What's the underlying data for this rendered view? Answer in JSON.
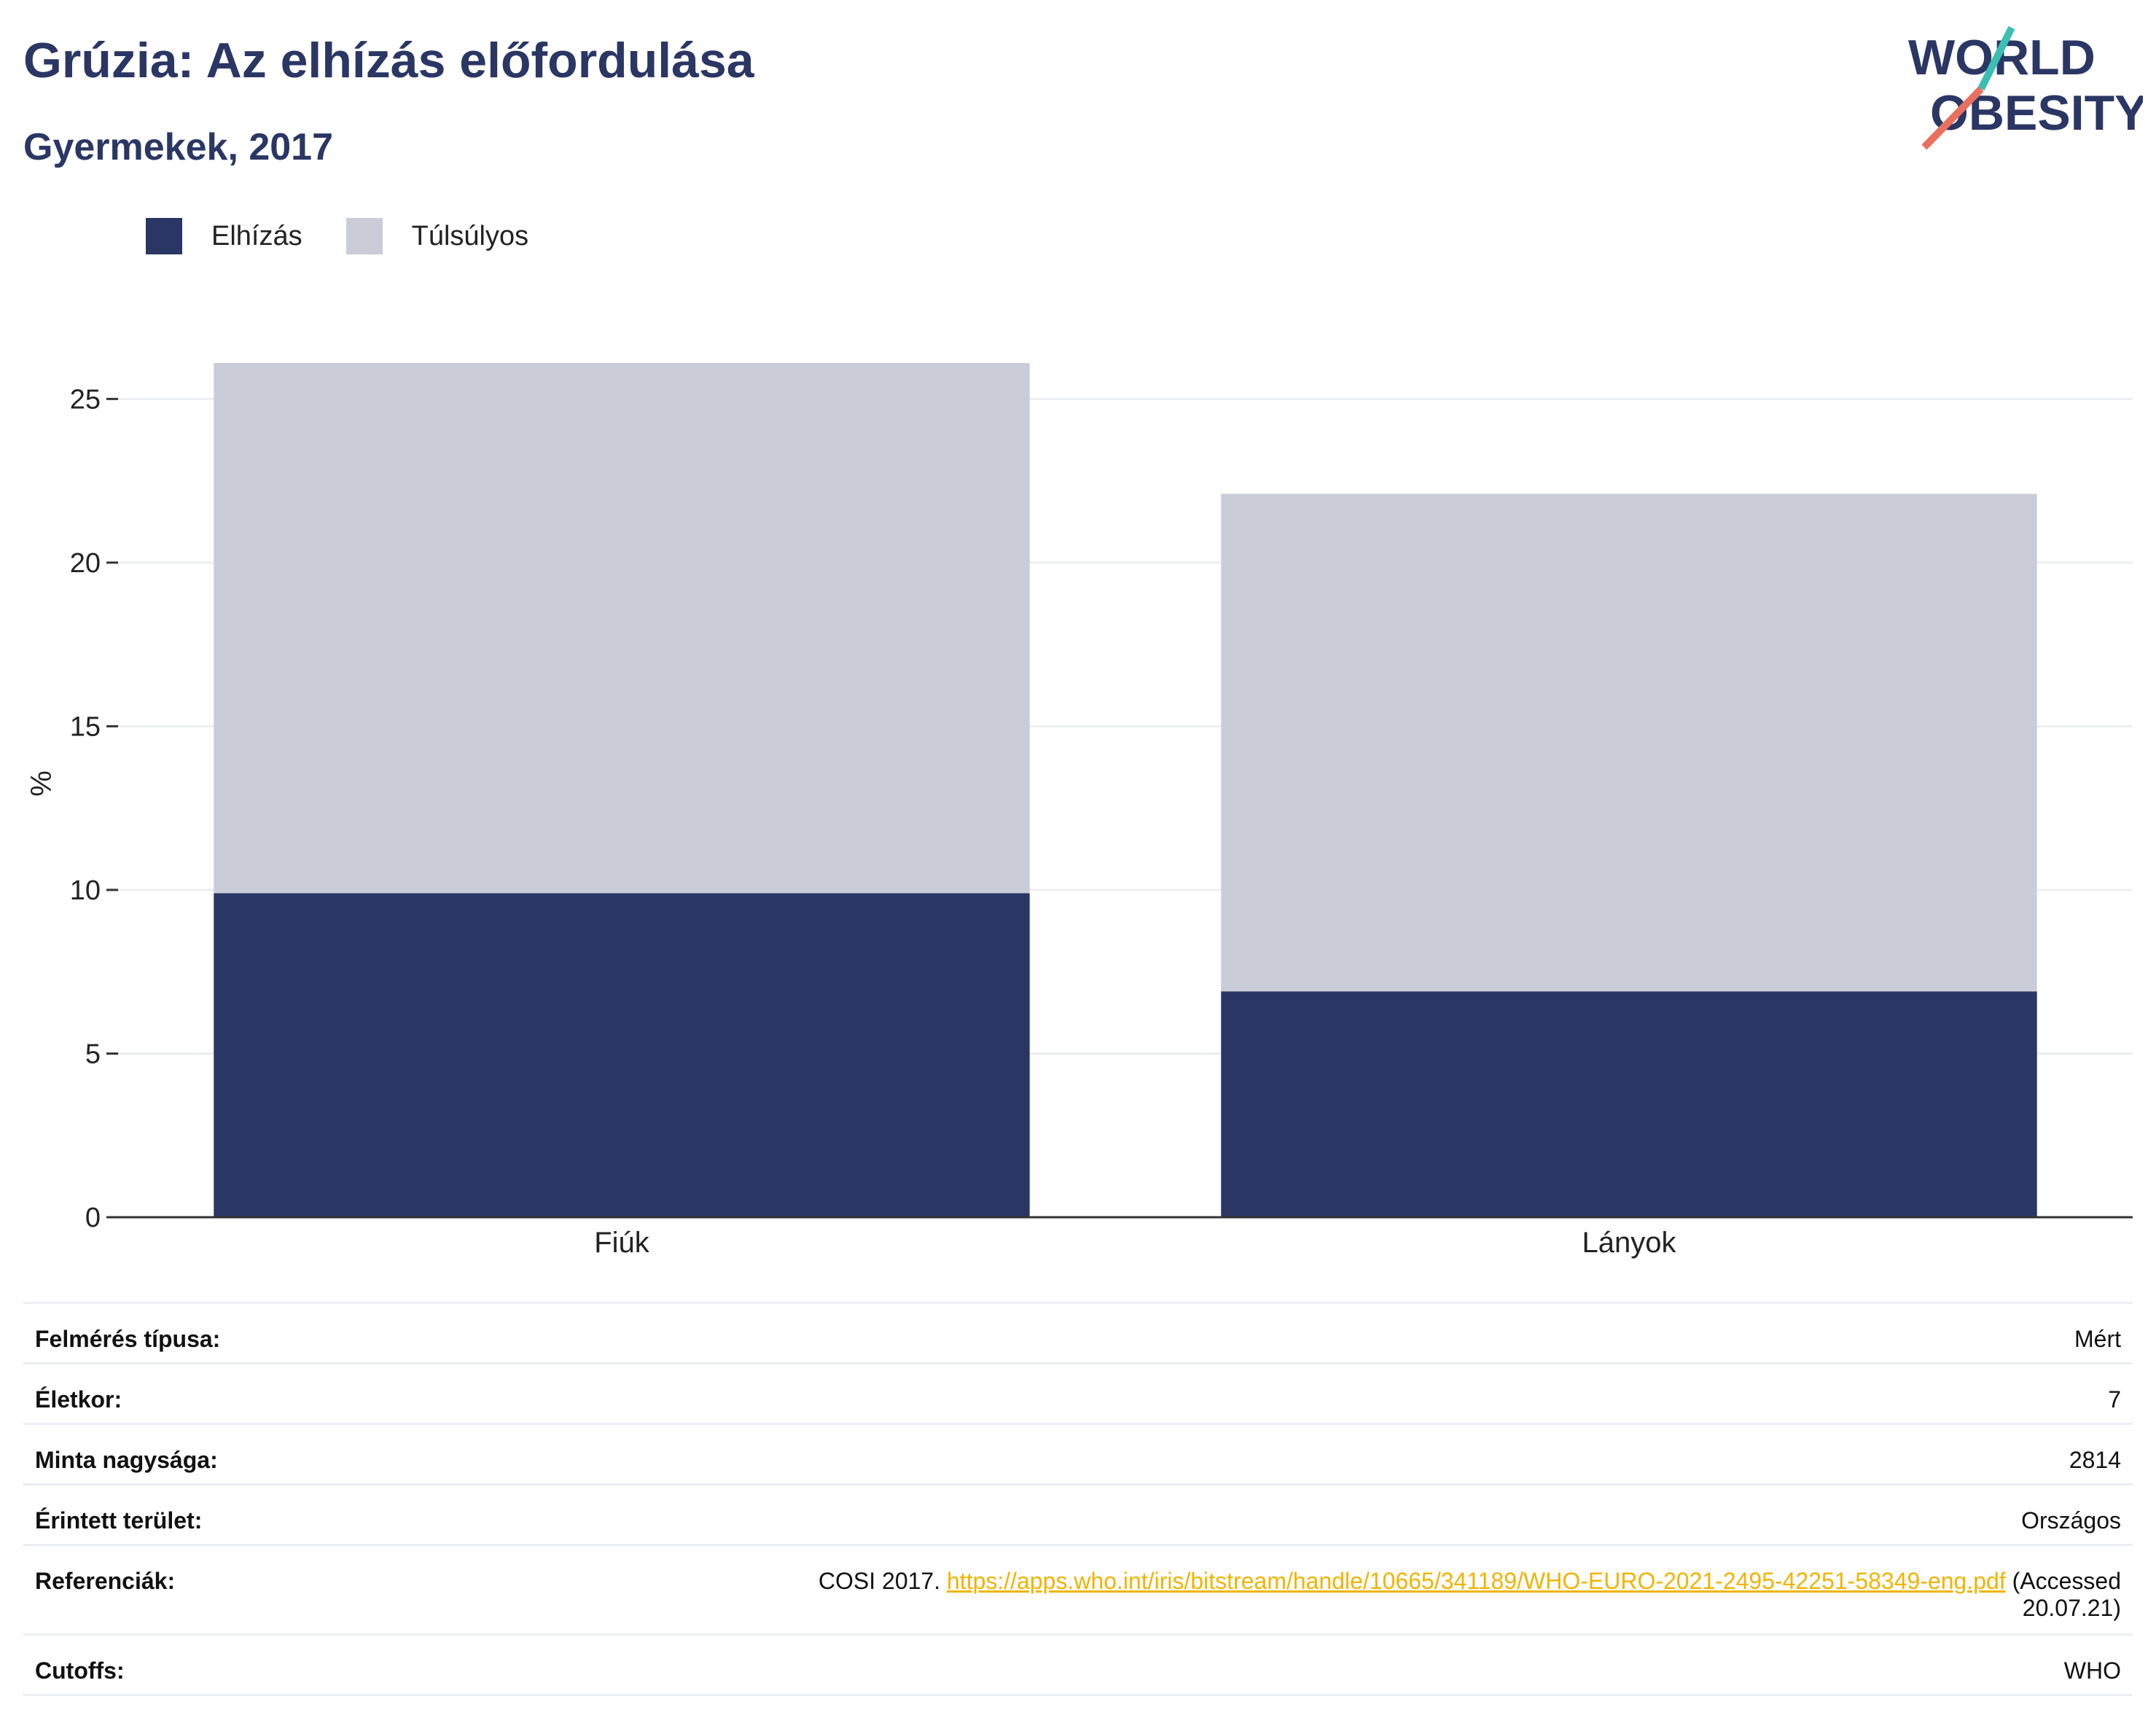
{
  "header": {
    "title": "Grúzia: Az elhízás előfordulása",
    "subtitle": "Gyermekek, 2017"
  },
  "logo": {
    "line1": "WORLD",
    "line2": "OBESITY",
    "icon": "world-obesity-logo"
  },
  "colors": {
    "obesity": "#2a3664",
    "overweight": "#cacdd8",
    "title": "#2a3664",
    "link": "#f0b400"
  },
  "legend": [
    {
      "label": "Elhízás",
      "color": "#2a3664"
    },
    {
      "label": "Túlsúlyos",
      "color": "#cacdd8"
    }
  ],
  "chart_data": {
    "type": "bar",
    "stacked": true,
    "categories": [
      "Fiúk",
      "Lányok"
    ],
    "series": [
      {
        "name": "Elhízás",
        "values": [
          9.9,
          6.9
        ]
      },
      {
        "name": "Túlsúlyos",
        "values": [
          16.2,
          15.2
        ]
      }
    ],
    "ylabel": "%",
    "ylim": [
      0,
      26.5
    ],
    "yticks": [
      0,
      5,
      10,
      15,
      20,
      25
    ],
    "grid": true,
    "legend_position": "top-left"
  },
  "info": {
    "survey_type": {
      "label": "Felmérés típusa:",
      "value": "Mért"
    },
    "age": {
      "label": "Életkor:",
      "value": "7"
    },
    "sample_size": {
      "label": "Minta nagysága:",
      "value": "2814"
    },
    "area": {
      "label": "Érintett terület:",
      "value": "Országos"
    },
    "references": {
      "label": "Referenciák:",
      "prefix": "COSI 2017.",
      "link": "https://apps.who.int/iris/bitstream/handle/10665/341189/WHO-EURO-2021-2495-42251-58349-eng.pdf",
      "suffix_1": "(Accessed",
      "suffix_2": "20.07.21)"
    },
    "cutoffs": {
      "label": "Cutoffs:",
      "value": "WHO"
    }
  }
}
